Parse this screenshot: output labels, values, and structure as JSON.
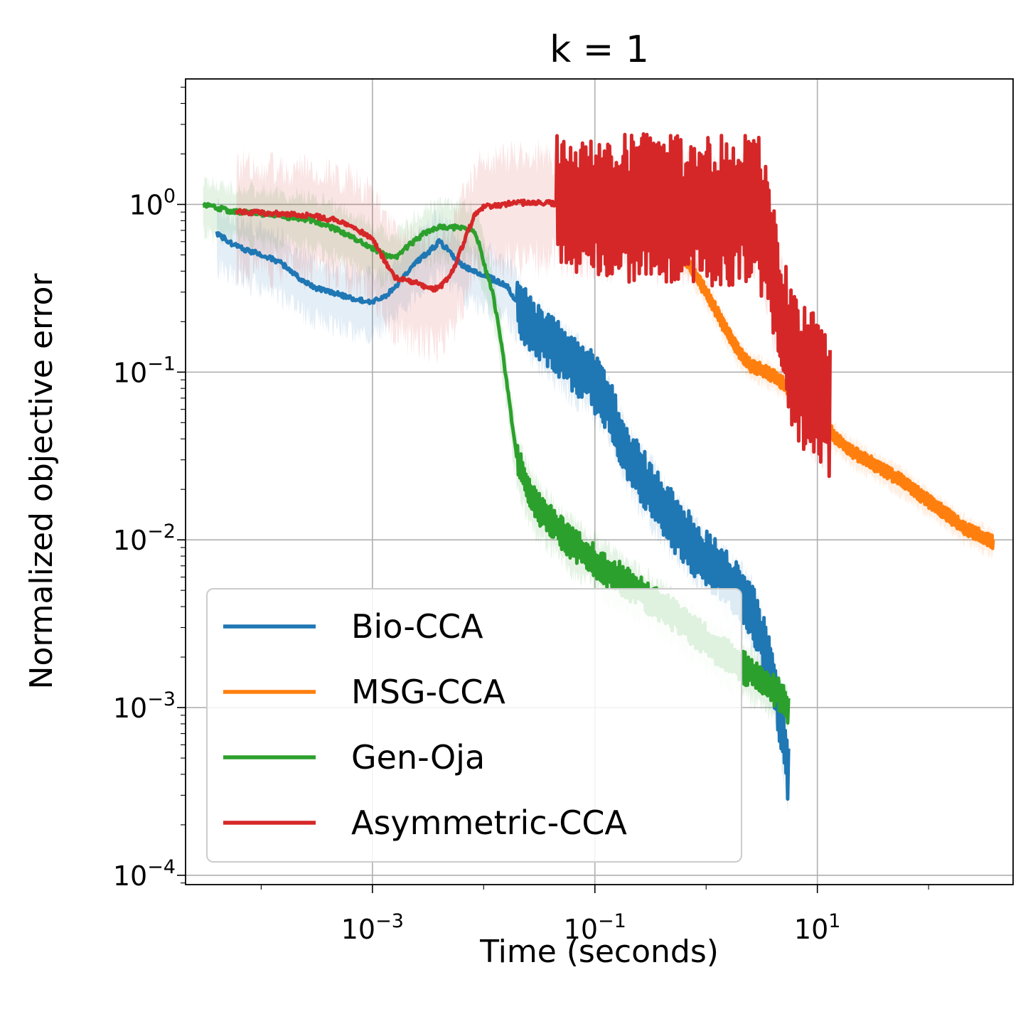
{
  "chart_data": {
    "type": "line",
    "title": "k = 1",
    "xlabel": "Time (seconds)",
    "ylabel": "Normalized objective error",
    "xscale": "log",
    "yscale": "log",
    "xlim": [
      2.09e-05,
      575
    ],
    "ylim": [
      8.8e-05,
      5.6
    ],
    "xticks": [
      {
        "value": 0.001,
        "base": "10",
        "exp": "−3"
      },
      {
        "value": 0.1,
        "base": "10",
        "exp": "−1"
      },
      {
        "value": 10,
        "base": "10",
        "exp": "1"
      }
    ],
    "yticks": [
      {
        "value": 0.0001,
        "base": "10",
        "exp": "−4"
      },
      {
        "value": 0.001,
        "base": "10",
        "exp": "−3"
      },
      {
        "value": 0.01,
        "base": "10",
        "exp": "−2"
      },
      {
        "value": 0.1,
        "base": "10",
        "exp": "−1"
      },
      {
        "value": 1,
        "base": "10",
        "exp": "0"
      }
    ],
    "grid": true,
    "legend_position": "lower-left",
    "series": [
      {
        "name": "Bio-CCA",
        "color": "#1f77b4",
        "points": [
          [
            4e-05,
            0.67
          ],
          [
            6e-05,
            0.56
          ],
          [
            0.0001,
            0.5
          ],
          [
            0.00015,
            0.45
          ],
          [
            0.0002,
            0.38
          ],
          [
            0.0003,
            0.32
          ],
          [
            0.0005,
            0.29
          ],
          [
            0.0007,
            0.27
          ],
          [
            0.001,
            0.265
          ],
          [
            0.0013,
            0.28
          ],
          [
            0.0018,
            0.35
          ],
          [
            0.0025,
            0.45
          ],
          [
            0.0035,
            0.55
          ],
          [
            0.004,
            0.6
          ],
          [
            0.005,
            0.52
          ],
          [
            0.006,
            0.45
          ],
          [
            0.008,
            0.4
          ],
          [
            0.01,
            0.38
          ],
          [
            0.013,
            0.35
          ],
          [
            0.016,
            0.33
          ],
          [
            0.02,
            0.26
          ],
          [
            0.025,
            0.2
          ],
          [
            0.032,
            0.17
          ],
          [
            0.04,
            0.15
          ],
          [
            0.05,
            0.13
          ],
          [
            0.063,
            0.11
          ],
          [
            0.08,
            0.1
          ],
          [
            0.1,
            0.085
          ],
          [
            0.13,
            0.065
          ],
          [
            0.16,
            0.045
          ],
          [
            0.2,
            0.032
          ],
          [
            0.25,
            0.025
          ],
          [
            0.32,
            0.02
          ],
          [
            0.4,
            0.016
          ],
          [
            0.5,
            0.013
          ],
          [
            0.63,
            0.011
          ],
          [
            0.8,
            0.009
          ],
          [
            1,
            0.0075
          ],
          [
            1.3,
            0.0065
          ],
          [
            1.6,
            0.0055
          ],
          [
            2,
            0.0048
          ],
          [
            2.5,
            0.004
          ],
          [
            3.2,
            0.0025
          ],
          [
            4,
            0.0015
          ],
          [
            4.5,
            0.001
          ],
          [
            5,
            0.0006
          ],
          [
            5.5,
            0.0004
          ]
        ],
        "band": 0.35,
        "noise": 0.18,
        "noise_from": 0.02
      },
      {
        "name": "MSG-CCA",
        "color": "#ff7f0e",
        "points": [
          [
            0.2,
            0.8
          ],
          [
            0.3,
            0.7
          ],
          [
            0.4,
            0.62
          ],
          [
            0.5,
            0.56
          ],
          [
            0.6,
            0.5
          ],
          [
            0.7,
            0.44
          ],
          [
            0.8,
            0.38
          ],
          [
            1,
            0.3
          ],
          [
            1.2,
            0.24
          ],
          [
            1.5,
            0.18
          ],
          [
            2,
            0.13
          ],
          [
            2.5,
            0.11
          ],
          [
            3,
            0.105
          ],
          [
            4,
            0.095
          ],
          [
            5,
            0.085
          ],
          [
            6,
            0.075
          ],
          [
            7,
            0.07
          ],
          [
            8,
            0.065
          ],
          [
            10,
            0.055
          ],
          [
            12,
            0.048
          ],
          [
            15,
            0.04
          ],
          [
            20,
            0.034
          ],
          [
            30,
            0.029
          ],
          [
            40,
            0.026
          ],
          [
            60,
            0.022
          ],
          [
            80,
            0.019
          ],
          [
            100,
            0.017
          ],
          [
            150,
            0.014
          ],
          [
            200,
            0.012
          ],
          [
            300,
            0.0105
          ],
          [
            380,
            0.0097
          ]
        ],
        "band": 0.15,
        "noise": 0.04,
        "noise_from": 0.2
      },
      {
        "name": "Gen-Oja",
        "color": "#2ca02c",
        "points": [
          [
            3e-05,
            1
          ],
          [
            5e-05,
            0.92
          ],
          [
            0.0001,
            0.88
          ],
          [
            0.0002,
            0.83
          ],
          [
            0.0003,
            0.8
          ],
          [
            0.0005,
            0.7
          ],
          [
            0.0007,
            0.62
          ],
          [
            0.001,
            0.55
          ],
          [
            0.0013,
            0.5
          ],
          [
            0.0016,
            0.48
          ],
          [
            0.002,
            0.55
          ],
          [
            0.0025,
            0.62
          ],
          [
            0.003,
            0.68
          ],
          [
            0.004,
            0.73
          ],
          [
            0.005,
            0.72
          ],
          [
            0.006,
            0.74
          ],
          [
            0.007,
            0.7
          ],
          [
            0.008,
            0.72
          ],
          [
            0.009,
            0.6
          ],
          [
            0.01,
            0.45
          ],
          [
            0.012,
            0.3
          ],
          [
            0.014,
            0.17
          ],
          [
            0.016,
            0.09
          ],
          [
            0.018,
            0.05
          ],
          [
            0.02,
            0.03
          ],
          [
            0.025,
            0.02
          ],
          [
            0.03,
            0.016
          ],
          [
            0.04,
            0.013
          ],
          [
            0.05,
            0.011
          ],
          [
            0.063,
            0.0095
          ],
          [
            0.08,
            0.0085
          ],
          [
            0.1,
            0.0075
          ],
          [
            0.13,
            0.0065
          ],
          [
            0.16,
            0.006
          ],
          [
            0.2,
            0.0055
          ],
          [
            0.3,
            0.0045
          ],
          [
            0.5,
            0.0036
          ],
          [
            0.8,
            0.0028
          ],
          [
            1,
            0.0025
          ],
          [
            2,
            0.0018
          ],
          [
            3,
            0.0015
          ],
          [
            4,
            0.0013
          ],
          [
            5,
            0.0011
          ],
          [
            5.5,
            0.001
          ]
        ],
        "band": 0.3,
        "noise": 0.1,
        "noise_from": 0.02
      },
      {
        "name": "Asymmetric-CCA",
        "color": "#d62728",
        "points": [
          [
            6e-05,
            0.9
          ],
          [
            0.0001,
            0.89
          ],
          [
            0.0002,
            0.87
          ],
          [
            0.0003,
            0.85
          ],
          [
            0.0005,
            0.8
          ],
          [
            0.0007,
            0.72
          ],
          [
            0.001,
            0.62
          ],
          [
            0.0012,
            0.5
          ],
          [
            0.0014,
            0.42
          ],
          [
            0.0016,
            0.37
          ],
          [
            0.002,
            0.35
          ],
          [
            0.0025,
            0.34
          ],
          [
            0.003,
            0.32
          ],
          [
            0.0035,
            0.31
          ],
          [
            0.004,
            0.32
          ],
          [
            0.005,
            0.37
          ],
          [
            0.006,
            0.5
          ],
          [
            0.007,
            0.65
          ],
          [
            0.008,
            0.82
          ],
          [
            0.009,
            0.93
          ],
          [
            0.01,
            0.97
          ],
          [
            0.015,
            1
          ],
          [
            0.02,
            1.02
          ],
          [
            0.03,
            1.03
          ],
          [
            0.04,
            1.02
          ],
          [
            0.05,
            1
          ],
          [
            0.1,
            0.95
          ],
          [
            0.2,
            0.95
          ],
          [
            0.5,
            0.93
          ],
          [
            1,
            0.92
          ],
          [
            2,
            0.92
          ],
          [
            3,
            0.9
          ],
          [
            3.5,
            0.6
          ],
          [
            4,
            0.35
          ],
          [
            5,
            0.2
          ],
          [
            6,
            0.12
          ],
          [
            8,
            0.09
          ],
          [
            10,
            0.075
          ],
          [
            12,
            0.07
          ],
          [
            13,
            0.065
          ]
        ],
        "band": 0.6,
        "noise": 0.45,
        "noise_from": 0.045
      }
    ]
  }
}
